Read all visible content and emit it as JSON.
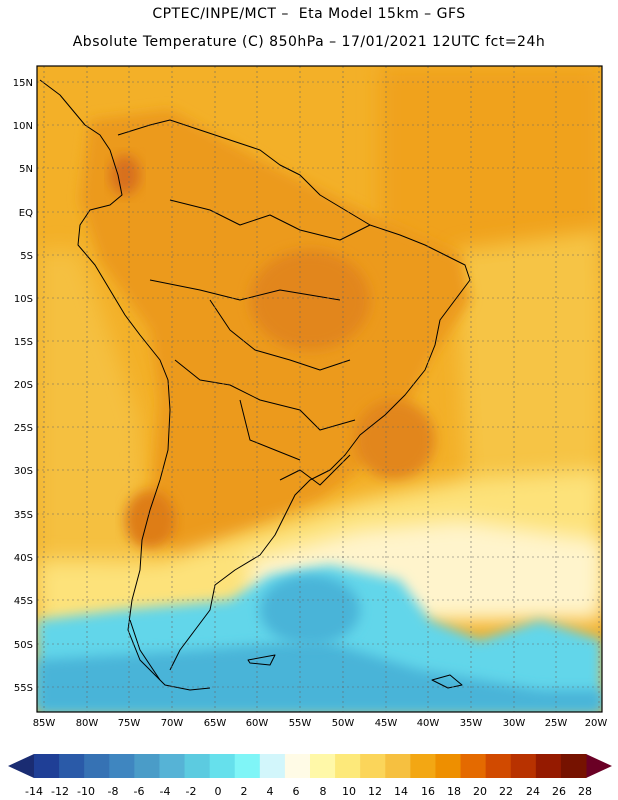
{
  "header": {
    "title_line1": "CPTEC/INPE/MCT –  Eta Model 15km – GFS",
    "title_line2": "Absolute Temperature (C) 850hPa – 17/01/2021 12UTC fct=24h"
  },
  "map": {
    "lat_labels": [
      "15N",
      "10N",
      "5N",
      "EQ",
      "5S",
      "10S",
      "15S",
      "20S",
      "25S",
      "30S",
      "35S",
      "40S",
      "45S",
      "50S",
      "55S"
    ],
    "lon_labels": [
      "85W",
      "80W",
      "75W",
      "70W",
      "65W",
      "60W",
      "55W",
      "50W",
      "45W",
      "40W",
      "35W",
      "30W",
      "25W",
      "20W"
    ]
  },
  "colorbar": {
    "labels": [
      "-14",
      "-12",
      "-10",
      "-8",
      "-6",
      "-4",
      "-2",
      "0",
      "2",
      "4",
      "6",
      "8",
      "10",
      "12",
      "14",
      "16",
      "18",
      "20",
      "22",
      "24",
      "26",
      "28"
    ],
    "colors": [
      "#1f3f96",
      "#2a5aa8",
      "#3672b4",
      "#3f86c0",
      "#4a9cc8",
      "#56b3d6",
      "#5ccbe0",
      "#66e0ec",
      "#7ff5f7",
      "#d2f6fb",
      "#fffbe6",
      "#fff8a8",
      "#fde97a",
      "#fbd55a",
      "#f6c040",
      "#f3a713",
      "#ee8f00",
      "#e46a00",
      "#d14a00",
      "#b83200",
      "#951a00",
      "#761200"
    ],
    "lower_arrow_color": "#1a2c72",
    "upper_arrow_color": "#6a0025"
  },
  "legend_colors": {
    "land_warm": "#ee9c1c",
    "land_hot": "#e08a1a",
    "ocean_warm": "#f4c64a",
    "ocean_mid": "#fde47a",
    "cold_band": "#54c6e0",
    "cold_deep": "#3fa5cd"
  }
}
